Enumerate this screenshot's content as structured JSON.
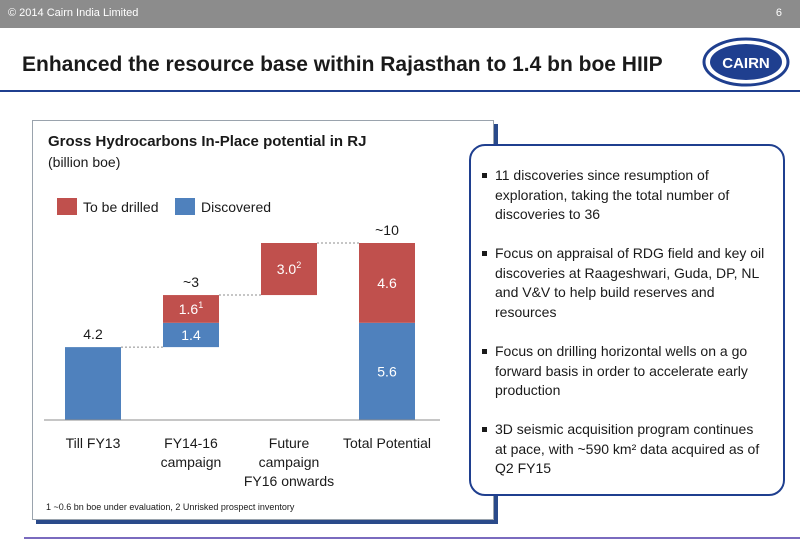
{
  "header": {
    "copyright": "© 2014 Cairn India Limited",
    "page_number": "6",
    "bar_color": "#8c8c8c"
  },
  "slide": {
    "title": "Enhanced the resource base within Rajasthan to 1.4 bn boe HIIP",
    "logo_text": "CAIRN",
    "accent_color": "#1f3f8f"
  },
  "chart_panel": {
    "title": "Gross Hydrocarbons In-Place potential in RJ",
    "subtitle": "(billion boe)",
    "footnote": "1 ~0.6 bn boe under evaluation, 2 Unrisked prospect inventory"
  },
  "chart_data": {
    "type": "bar",
    "subtype": "waterfall-stacked",
    "categories": [
      "Till FY13",
      "FY14-16 campaign",
      "Future campaign FY16 onwards",
      "Total Potential"
    ],
    "category_lines": [
      [
        "Till FY13"
      ],
      [
        "FY14-16",
        "campaign"
      ],
      [
        "Future",
        "campaign",
        "FY16 onwards"
      ],
      [
        "Total Potential"
      ]
    ],
    "legend_position": "top-left",
    "ylim": [
      0,
      10.4
    ],
    "grid": false,
    "series": [
      {
        "name": "To be drilled",
        "color": "#c0504d"
      },
      {
        "name": "Discovered",
        "color": "#4f81bd"
      }
    ],
    "bars": [
      {
        "segments": [
          {
            "series": "Discovered",
            "start": 0,
            "end": 4.2,
            "label": ""
          }
        ],
        "top_label": "4.2"
      },
      {
        "segments": [
          {
            "series": "Discovered",
            "start": 4.2,
            "end": 5.6,
            "label": "1.4",
            "sup": ""
          },
          {
            "series": "To be drilled",
            "start": 5.6,
            "end": 7.2,
            "label": "1.6",
            "sup": "1"
          }
        ],
        "top_label": "~3"
      },
      {
        "segments": [
          {
            "series": "To be drilled",
            "start": 7.2,
            "end": 10.2,
            "label": "3.0",
            "sup": "2"
          }
        ],
        "top_label": ""
      },
      {
        "segments": [
          {
            "series": "Discovered",
            "start": 0,
            "end": 5.6,
            "label": "5.6",
            "sup": ""
          },
          {
            "series": "To be drilled",
            "start": 5.6,
            "end": 10.2,
            "label": "4.6",
            "sup": ""
          }
        ],
        "top_label": "~10"
      }
    ]
  },
  "bullets": [
    "11 discoveries since resumption of exploration, taking the total number of discoveries to 36",
    "Focus on appraisal of RDG field and key oil discoveries at Raageshwari, Guda, DP, NL and V&V to help build reserves and resources",
    "Focus on drilling horizontal wells on a go forward basis in order to accelerate early production",
    "3D seismic acquisition program continues at pace, with ~590 km² data acquired as of Q2 FY15"
  ]
}
